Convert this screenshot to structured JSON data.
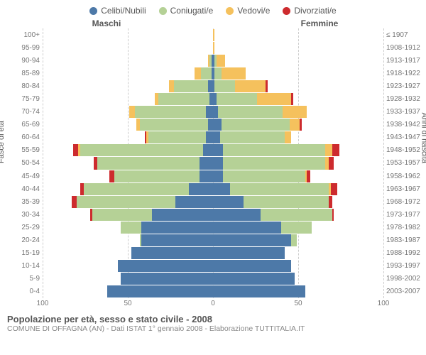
{
  "legend": [
    {
      "label": "Celibi/Nubili",
      "color": "#4d79a8"
    },
    {
      "label": "Coniugati/e",
      "color": "#b5d196"
    },
    {
      "label": "Vedovi/e",
      "color": "#f5c15d"
    },
    {
      "label": "Divorziati/e",
      "color": "#cd2b2e"
    }
  ],
  "headers": {
    "male": "Maschi",
    "female": "Femmine"
  },
  "ylabels": {
    "left": "Fasce di età",
    "right": "Anni di nascita"
  },
  "xmax": 100,
  "xticks": [
    0,
    50,
    100
  ],
  "ages": [
    "100+",
    "95-99",
    "90-94",
    "85-89",
    "80-84",
    "75-79",
    "70-74",
    "65-69",
    "60-64",
    "55-59",
    "50-54",
    "45-49",
    "40-44",
    "35-39",
    "30-34",
    "25-29",
    "20-24",
    "15-19",
    "10-14",
    "5-9",
    "0-4"
  ],
  "births": [
    "≤ 1907",
    "1908-1912",
    "1913-1917",
    "1918-1922",
    "1923-1927",
    "1928-1932",
    "1933-1937",
    "1938-1942",
    "1943-1947",
    "1948-1952",
    "1953-1957",
    "1958-1962",
    "1963-1967",
    "1968-1972",
    "1973-1977",
    "1978-1982",
    "1983-1987",
    "1988-1992",
    "1993-1997",
    "1998-2002",
    "2003-2007"
  ],
  "male": [
    {
      "c": 0,
      "m": 0,
      "w": 0,
      "d": 0
    },
    {
      "c": 0,
      "m": 0,
      "w": 0,
      "d": 0
    },
    {
      "c": 1,
      "m": 1,
      "w": 1,
      "d": 0
    },
    {
      "c": 1,
      "m": 6,
      "w": 4,
      "d": 0
    },
    {
      "c": 3,
      "m": 20,
      "w": 3,
      "d": 0
    },
    {
      "c": 2,
      "m": 30,
      "w": 2,
      "d": 0
    },
    {
      "c": 4,
      "m": 42,
      "w": 3,
      "d": 0
    },
    {
      "c": 3,
      "m": 40,
      "w": 2,
      "d": 0
    },
    {
      "c": 4,
      "m": 34,
      "w": 1,
      "d": 1
    },
    {
      "c": 6,
      "m": 72,
      "w": 1,
      "d": 3
    },
    {
      "c": 8,
      "m": 60,
      "w": 0,
      "d": 2
    },
    {
      "c": 8,
      "m": 50,
      "w": 0,
      "d": 3
    },
    {
      "c": 14,
      "m": 62,
      "w": 0,
      "d": 2
    },
    {
      "c": 22,
      "m": 58,
      "w": 0,
      "d": 3
    },
    {
      "c": 36,
      "m": 35,
      "w": 0,
      "d": 1
    },
    {
      "c": 42,
      "m": 12,
      "w": 0,
      "d": 0
    },
    {
      "c": 42,
      "m": 1,
      "w": 0,
      "d": 0
    },
    {
      "c": 48,
      "m": 0,
      "w": 0,
      "d": 0
    },
    {
      "c": 56,
      "m": 0,
      "w": 0,
      "d": 0
    },
    {
      "c": 54,
      "m": 0,
      "w": 0,
      "d": 0
    },
    {
      "c": 62,
      "m": 0,
      "w": 0,
      "d": 0
    }
  ],
  "female": [
    {
      "c": 0,
      "m": 0,
      "w": 1,
      "d": 0
    },
    {
      "c": 0,
      "m": 0,
      "w": 1,
      "d": 0
    },
    {
      "c": 1,
      "m": 1,
      "w": 5,
      "d": 0
    },
    {
      "c": 1,
      "m": 4,
      "w": 14,
      "d": 0
    },
    {
      "c": 1,
      "m": 12,
      "w": 18,
      "d": 1
    },
    {
      "c": 2,
      "m": 24,
      "w": 20,
      "d": 1
    },
    {
      "c": 3,
      "m": 38,
      "w": 14,
      "d": 0
    },
    {
      "c": 5,
      "m": 40,
      "w": 6,
      "d": 1
    },
    {
      "c": 4,
      "m": 38,
      "w": 4,
      "d": 0
    },
    {
      "c": 6,
      "m": 60,
      "w": 4,
      "d": 4
    },
    {
      "c": 6,
      "m": 60,
      "w": 2,
      "d": 3
    },
    {
      "c": 6,
      "m": 48,
      "w": 1,
      "d": 2
    },
    {
      "c": 10,
      "m": 58,
      "w": 1,
      "d": 4
    },
    {
      "c": 18,
      "m": 50,
      "w": 0,
      "d": 2
    },
    {
      "c": 28,
      "m": 42,
      "w": 0,
      "d": 1
    },
    {
      "c": 40,
      "m": 18,
      "w": 0,
      "d": 0
    },
    {
      "c": 46,
      "m": 3,
      "w": 0,
      "d": 0
    },
    {
      "c": 42,
      "m": 0,
      "w": 0,
      "d": 0
    },
    {
      "c": 46,
      "m": 0,
      "w": 0,
      "d": 0
    },
    {
      "c": 48,
      "m": 0,
      "w": 0,
      "d": 0
    },
    {
      "c": 54,
      "m": 0,
      "w": 0,
      "d": 0
    }
  ],
  "colors": {
    "c": "#4d79a8",
    "m": "#b5d196",
    "w": "#f5c15d",
    "d": "#cd2b2e",
    "grid": "#cccccc"
  },
  "title": "Popolazione per età, sesso e stato civile - 2008",
  "subtitle": "COMUNE DI OFFAGNA (AN) - Dati ISTAT 1° gennaio 2008 - Elaborazione TUTTITALIA.IT"
}
